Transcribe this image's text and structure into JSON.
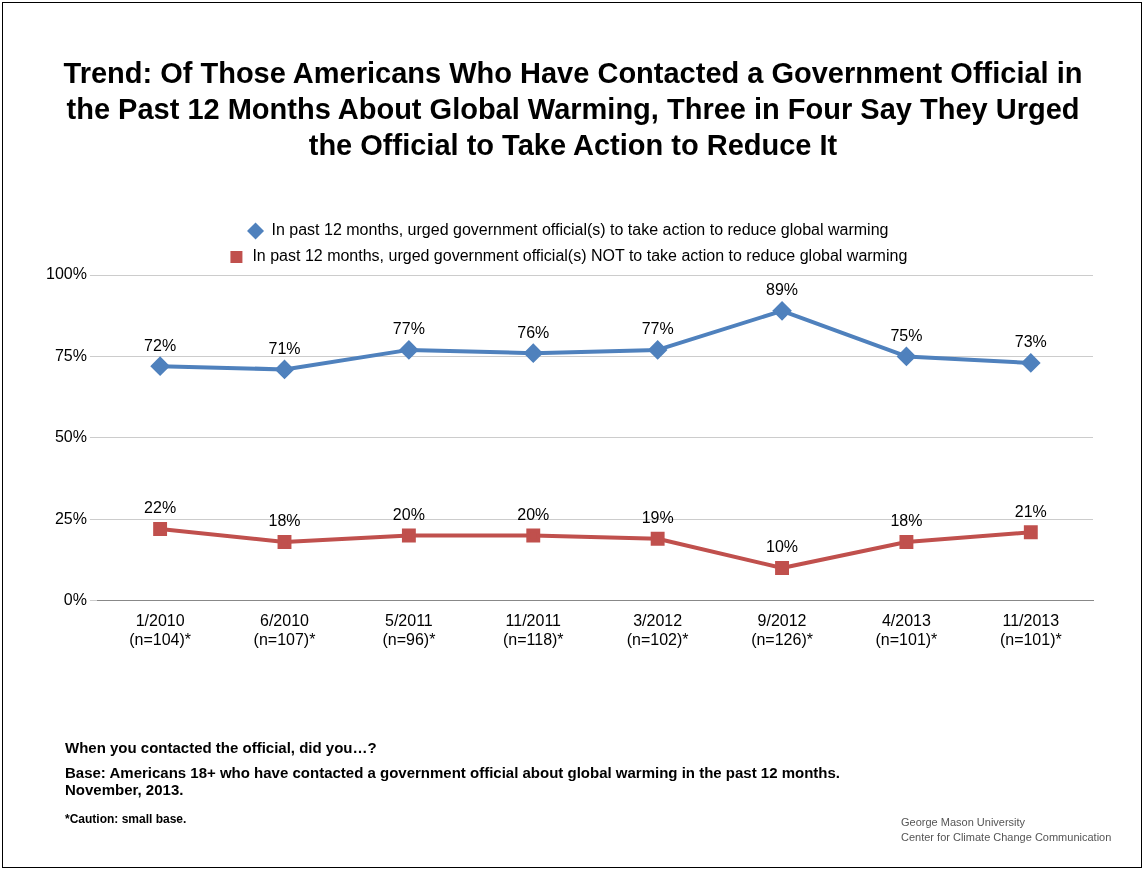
{
  "chart_data": {
    "type": "line",
    "title": "Trend: Of Those Americans Who Have Contacted a Government Official in the Past 12 Months About Global Warming, Three in Four Say They Urged the Official to Take Action to Reduce It",
    "categories": [
      "1/2010\n(n=104)*",
      "6/2010\n(n=107)*",
      "5/2011\n(n=96)*",
      "11/2011\n(n=118)*",
      "3/2012\n(n=102)*",
      "9/2012\n(n=126)*",
      "4/2013\n(n=101)*",
      "11/2013\n(n=101)*"
    ],
    "series": [
      {
        "name": "In past 12 months, urged government official(s) to take action to reduce global warming",
        "color": "#4f81bd",
        "marker": "diamond",
        "values": [
          72,
          71,
          77,
          76,
          77,
          89,
          75,
          73
        ],
        "value_labels": [
          "72%",
          "71%",
          "77%",
          "76%",
          "77%",
          "89%",
          "75%",
          "73%"
        ]
      },
      {
        "name": "In past 12 months, urged government official(s) NOT to take action to reduce global warming",
        "color": "#c0504d",
        "marker": "square",
        "values": [
          22,
          18,
          20,
          20,
          19,
          10,
          18,
          21
        ],
        "value_labels": [
          "22%",
          "18%",
          "20%",
          "20%",
          "19%",
          "10%",
          "18%",
          "21%"
        ]
      }
    ],
    "ylim": [
      0,
      100
    ],
    "yticks": [
      {
        "value": 0,
        "label": "0%"
      },
      {
        "value": 25,
        "label": "25%"
      },
      {
        "value": 50,
        "label": "50%"
      },
      {
        "value": 75,
        "label": "75%"
      },
      {
        "value": 100,
        "label": "100%"
      }
    ],
    "grid": "y",
    "legend": "top",
    "line_style": "solid",
    "annotations": [
      "When you contacted the official, did you…?",
      "Base: Americans 18+ who have contacted a government official about global warming in the past 12 months. November, 2013.",
      "*Caution: small base.",
      "George Mason University\nCenter for Climate Change Communication"
    ]
  }
}
